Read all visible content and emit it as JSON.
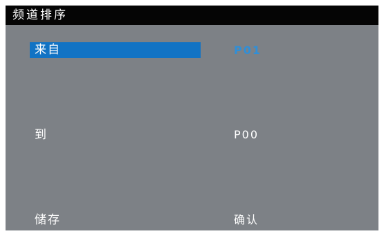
{
  "window": {
    "title": "频道排序"
  },
  "menu": {
    "rows": [
      {
        "label": "来自",
        "value": "P01",
        "selected": true
      },
      {
        "label": "到",
        "value": "P00",
        "selected": false
      },
      {
        "label": "储存",
        "value": "确认",
        "selected": false
      }
    ]
  },
  "colors": {
    "panel_background": "#7d8186",
    "title_bar": "#050505",
    "selection": "#1273c4",
    "selected_value": "#2f8fd8",
    "text": "#ffffff"
  }
}
